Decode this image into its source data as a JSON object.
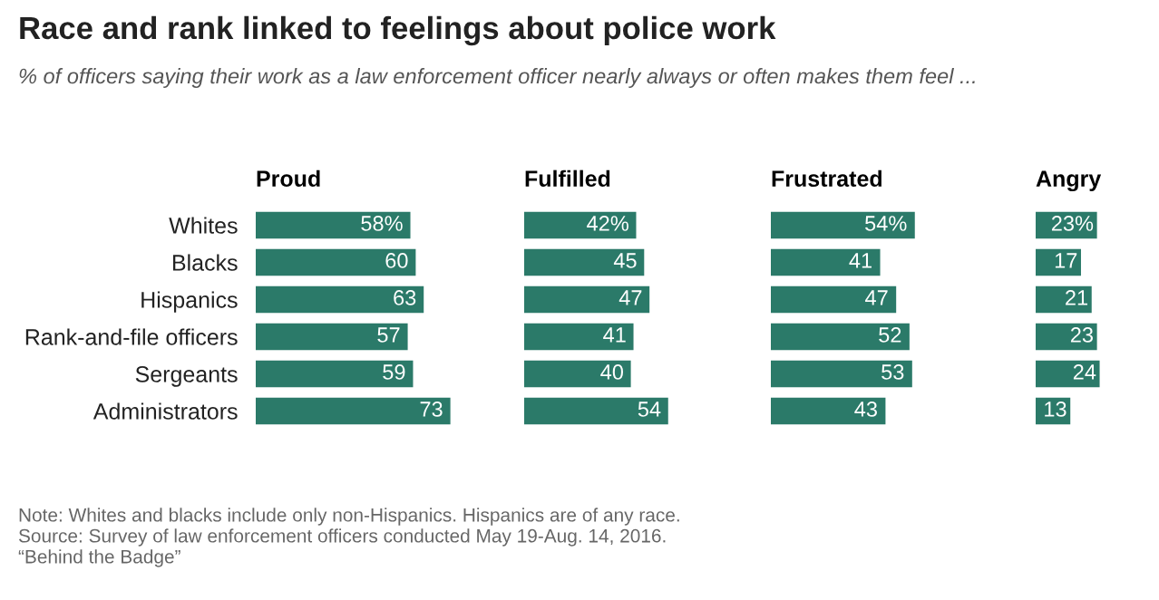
{
  "chart_data": [
    {
      "type": "bar",
      "orientation": "horizontal",
      "title": "Proud",
      "categories": [
        "Whites",
        "Blacks",
        "Hispanics",
        "Rank-and-file officers",
        "Sergeants",
        "Administrators"
      ],
      "series": [
        {
          "color": "#2b7a69",
          "values": [
            58,
            60,
            63,
            57,
            59,
            73
          ],
          "value_labels": [
            "58%",
            "60",
            "63",
            "57",
            "59",
            "73"
          ]
        }
      ],
      "tick_labels": "y",
      "grid": false,
      "legend": false
    },
    {
      "type": "bar",
      "orientation": "horizontal",
      "title": "Fulfilled",
      "series": [
        {
          "color": "#2b7a69",
          "values": [
            42,
            45,
            47,
            41,
            40,
            54
          ],
          "value_labels": [
            "42%",
            "45",
            "47",
            "41",
            "40",
            "54"
          ]
        }
      ],
      "tick_labels": false,
      "grid": false,
      "legend": false
    },
    {
      "type": "bar",
      "orientation": "horizontal",
      "title": "Frustrated",
      "series": [
        {
          "color": "#2b7a69",
          "values": [
            54,
            41,
            47,
            52,
            53,
            43
          ],
          "value_labels": [
            "54%",
            "41",
            "47",
            "52",
            "53",
            "43"
          ]
        }
      ],
      "tick_labels": false,
      "grid": false,
      "legend": false
    },
    {
      "type": "bar",
      "orientation": "horizontal",
      "title": "Angry",
      "series": [
        {
          "color": "#2b7a69",
          "values": [
            23,
            17,
            21,
            23,
            24,
            13
          ],
          "value_labels": [
            "23%",
            "17",
            "21",
            "23",
            "24",
            "13"
          ]
        }
      ],
      "tick_labels": false,
      "grid": false,
      "legend": false,
      "annotations": [
        "Race and rank linked to feelings about police work",
        "% of officers saying their work as a law enforcement officer nearly always or often makes them feel ...",
        "Note: Whites and blacks include only non-Hispanics. Hispanics are of any race.",
        "Source: Survey of law enforcement officers conducted May 19-Aug. 14, 2016.",
        "“Behind the Badge”"
      ]
    }
  ]
}
